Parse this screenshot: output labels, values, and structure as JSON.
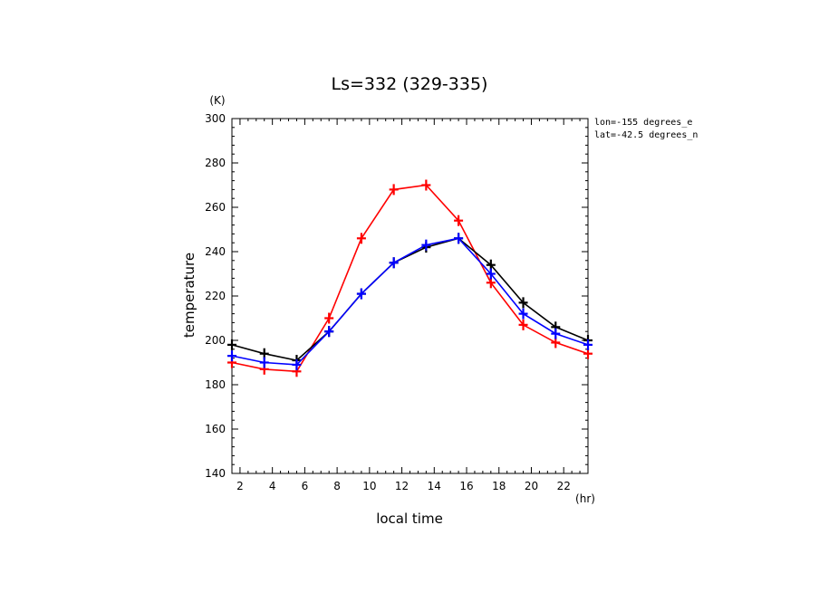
{
  "chart_data": {
    "type": "line",
    "title": "Ls=332 (329-335)",
    "xlabel": "local time",
    "ylabel": "temperature",
    "x_unit": "(hr)",
    "y_unit": "(K)",
    "xlim": [
      1.5,
      23.5
    ],
    "ylim": [
      140,
      300
    ],
    "x_ticks": [
      2,
      4,
      6,
      8,
      10,
      12,
      14,
      16,
      18,
      20,
      22
    ],
    "y_ticks": [
      140,
      160,
      180,
      200,
      220,
      240,
      260,
      280,
      300
    ],
    "annotations": [
      "lon=-155 degrees_e",
      "lat=-42.5 degrees_n"
    ],
    "x": [
      1.5,
      3.5,
      5.5,
      7.5,
      9.5,
      11.5,
      13.5,
      15.5,
      17.5,
      19.5,
      21.5,
      23.5
    ],
    "series": [
      {
        "color": "#ff0000",
        "values": [
          190,
          187,
          186,
          210,
          246,
          268,
          270,
          254,
          226,
          207,
          199,
          194
        ]
      },
      {
        "color": "#000000",
        "values": [
          198,
          194,
          191,
          204,
          221,
          235,
          242,
          246,
          234,
          217,
          206,
          200
        ]
      },
      {
        "color": "#0000ff",
        "values": [
          193,
          190,
          189,
          204,
          221,
          235,
          243,
          246,
          230,
          212,
          203,
          198
        ]
      }
    ]
  }
}
